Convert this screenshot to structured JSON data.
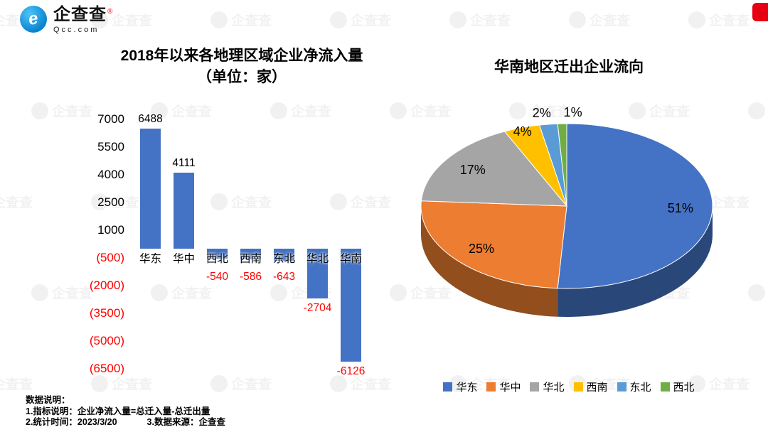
{
  "logo": {
    "brand": "企查查",
    "reg_mark": "®",
    "domain": "Qcc.com",
    "icon_glyph": "e"
  },
  "watermark": {
    "text": "企查查"
  },
  "footer": {
    "title": "数据说明：",
    "line1": "1.指标说明：企业净流入量=总迁入量-总迁出量",
    "line2a": "2.统计时间：2023/3/20",
    "line2b": "3.数据来源：企查查"
  },
  "chart_data": [
    {
      "type": "bar",
      "title": "2018年以来各地理区域企业净流入量",
      "subtitle": "（单位：家）",
      "categories": [
        "华东",
        "华中",
        "西北",
        "西南",
        "东北",
        "华北",
        "华南"
      ],
      "values": [
        6488,
        4111,
        -540,
        -586,
        -643,
        -2704,
        -6126
      ],
      "y_ticks": [
        7000,
        5500,
        4000,
        2500,
        1000,
        -500,
        -2000,
        -3500,
        -5000,
        -6500
      ],
      "ylim": [
        -6500,
        7000
      ],
      "grid": false,
      "bar_color": "#4472C4",
      "positive_label_color": "#000000",
      "negative_label_color": "#FF0000",
      "negative_tick_format": "parentheses"
    },
    {
      "type": "pie",
      "title": "华南地区迁出企业流向",
      "labels": [
        "华东",
        "华中",
        "华北",
        "西南",
        "东北",
        "西北"
      ],
      "values": [
        51,
        25,
        17,
        4,
        2,
        1
      ],
      "value_suffix": "%",
      "colors": [
        "#4472C4",
        "#ED7D31",
        "#A5A5A5",
        "#FFC000",
        "#5B9BD5",
        "#70AD47"
      ],
      "effect": "3d",
      "start_angle_deg": 0,
      "direction": "clockwise",
      "legend_position": "bottom"
    }
  ]
}
